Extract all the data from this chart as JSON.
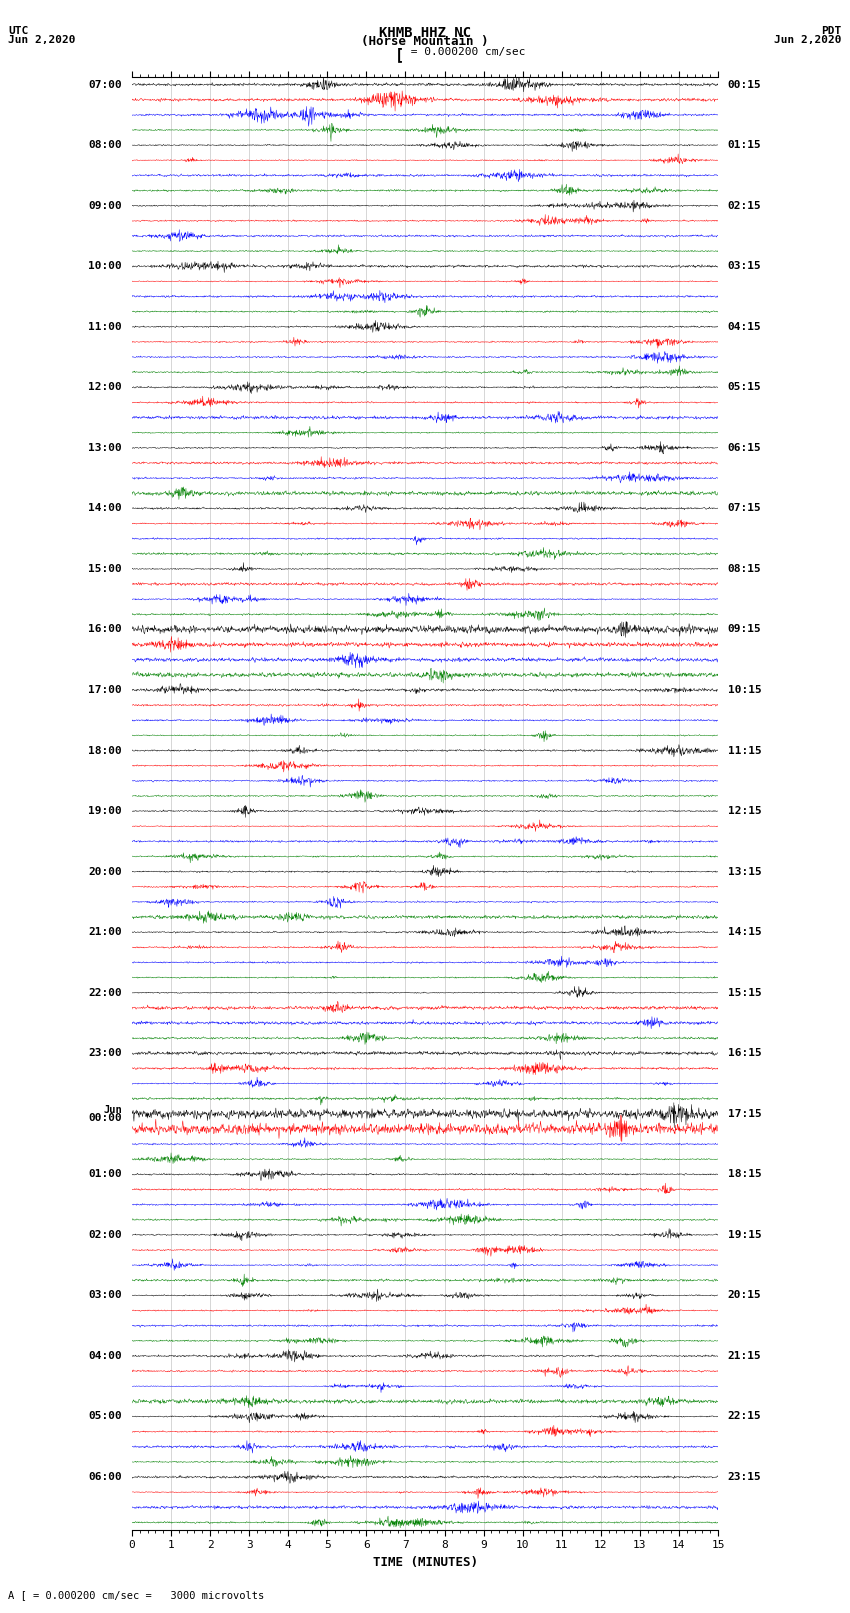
{
  "title_line1": "KHMB HHZ NC",
  "title_line2": "(Horse Mountain )",
  "scale_bracket": "[",
  "scale_text": " = 0.000200 cm/sec",
  "left_header_line1": "UTC",
  "left_header_line2": "Jun 2,2020",
  "right_header_line1": "PDT",
  "right_header_line2": "Jun 2,2020",
  "xlabel": "TIME (MINUTES)",
  "footer": "A [ = 0.000200 cm/sec =   3000 microvolts",
  "utc_texts": [
    "07:00",
    "08:00",
    "09:00",
    "10:00",
    "11:00",
    "12:00",
    "13:00",
    "14:00",
    "15:00",
    "16:00",
    "17:00",
    "18:00",
    "19:00",
    "20:00",
    "21:00",
    "22:00",
    "23:00",
    "00:00",
    "01:00",
    "02:00",
    "03:00",
    "04:00",
    "05:00",
    "06:00"
  ],
  "jun3_index": 17,
  "pdt_texts": [
    "00:15",
    "01:15",
    "02:15",
    "03:15",
    "04:15",
    "05:15",
    "06:15",
    "07:15",
    "08:15",
    "09:15",
    "10:15",
    "11:15",
    "12:15",
    "13:15",
    "14:15",
    "15:15",
    "16:15",
    "17:15",
    "18:15",
    "19:15",
    "20:15",
    "21:15",
    "22:15",
    "23:15"
  ],
  "n_hours": 24,
  "n_minutes": 15,
  "colors": [
    "black",
    "red",
    "blue",
    "green"
  ],
  "bg_color": "white",
  "grid_color": "#888888",
  "seed": 12345
}
